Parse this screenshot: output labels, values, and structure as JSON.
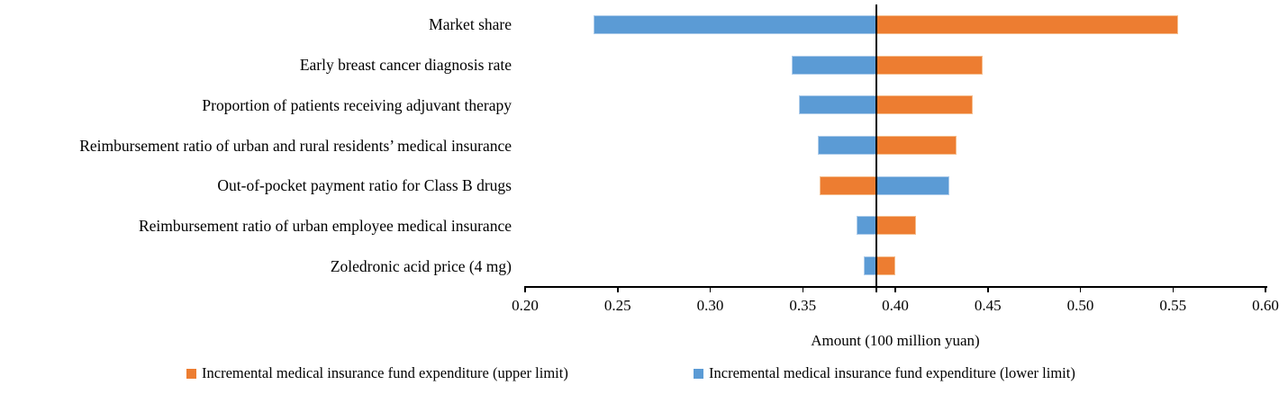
{
  "chart_data": {
    "type": "bar",
    "orientation": "horizontal",
    "title": "",
    "xlabel": "Amount (100 million yuan)",
    "xlim": [
      0.2,
      0.6
    ],
    "baseline": 0.39,
    "xticks": [
      "0.20",
      "0.25",
      "0.30",
      "0.35",
      "0.40",
      "0.45",
      "0.50",
      "0.55",
      "0.60"
    ],
    "grid": false,
    "legend_position": "bottom",
    "categories": [
      "Market share",
      "Early breast cancer diagnosis rate",
      "Proportion of patients receiving adjuvant therapy",
      "Reimbursement ratio of urban and rural residents’ medical insurance",
      "Out-of-pocket payment ratio for Class B drugs",
      "Reimbursement ratio of urban employee medical insurance",
      "Zoledronic acid price (4 mg)"
    ],
    "series": [
      {
        "name": "Incremental medical insurance fund expenditure (upper limit)",
        "color": "#ED7D31",
        "border_color": "#F5BE8E",
        "values": [
          0.553,
          0.447,
          0.442,
          0.433,
          0.359,
          0.411,
          0.4
        ]
      },
      {
        "name": "Incremental medical insurance fund expenditure (lower limit)",
        "color": "#5B9BD5",
        "border_color": "#ACCBEA",
        "values": [
          0.237,
          0.344,
          0.348,
          0.358,
          0.429,
          0.379,
          0.383
        ]
      }
    ],
    "colors": {
      "axis": "#000000",
      "baseline": "#000000",
      "text": "#000000",
      "background": "#ffffff"
    }
  }
}
